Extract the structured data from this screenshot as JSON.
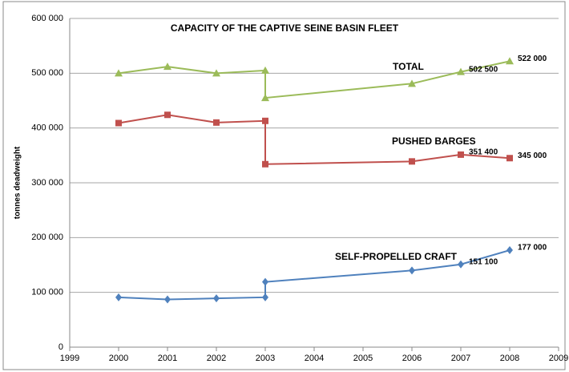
{
  "chart_data": {
    "type": "line",
    "title": "CAPACITY OF THE CAPTIVE SEINE BASIN FLEET",
    "y_label": "tonnes deadweight",
    "x": [
      2000,
      2001,
      2002,
      2003,
      2003,
      2006,
      2007,
      2008
    ],
    "series": [
      {
        "name": "TOTAL",
        "color": "#9bbb59",
        "marker": "triangle",
        "values": [
          500000,
          512000,
          500000,
          505000,
          455000,
          481000,
          502500,
          522000
        ],
        "value_labels": [
          null,
          null,
          null,
          null,
          null,
          null,
          "502 500",
          "522 000"
        ]
      },
      {
        "name": "PUSHED BARGES",
        "color": "#c0504d",
        "marker": "square",
        "values": [
          409000,
          424000,
          410000,
          413000,
          334000,
          339000,
          351400,
          345000
        ],
        "value_labels": [
          null,
          null,
          null,
          null,
          null,
          null,
          "351 400",
          "345 000"
        ]
      },
      {
        "name": "SELF-PROPELLED CRAFT",
        "color": "#4f81bd",
        "marker": "diamond",
        "values": [
          91000,
          87000,
          89000,
          91000,
          119000,
          140000,
          151100,
          177000
        ],
        "value_labels": [
          null,
          null,
          null,
          null,
          null,
          null,
          "151 100",
          "177 000"
        ]
      }
    ],
    "xlim": [
      1999,
      2009
    ],
    "xticks": [
      1999,
      2000,
      2001,
      2002,
      2003,
      2004,
      2005,
      2006,
      2007,
      2008,
      2009
    ],
    "ylim": [
      0,
      600000
    ],
    "yticks": [
      0,
      {
        "value": 100000,
        "label": "100 000"
      },
      {
        "value": 200000,
        "label": "200 000"
      },
      {
        "value": 300000,
        "label": "300 000"
      },
      {
        "value": 400000,
        "label": "400 000"
      },
      {
        "value": 500000,
        "label": "500 000"
      },
      {
        "value": 600000,
        "label": "600 000"
      }
    ],
    "grid": true
  }
}
